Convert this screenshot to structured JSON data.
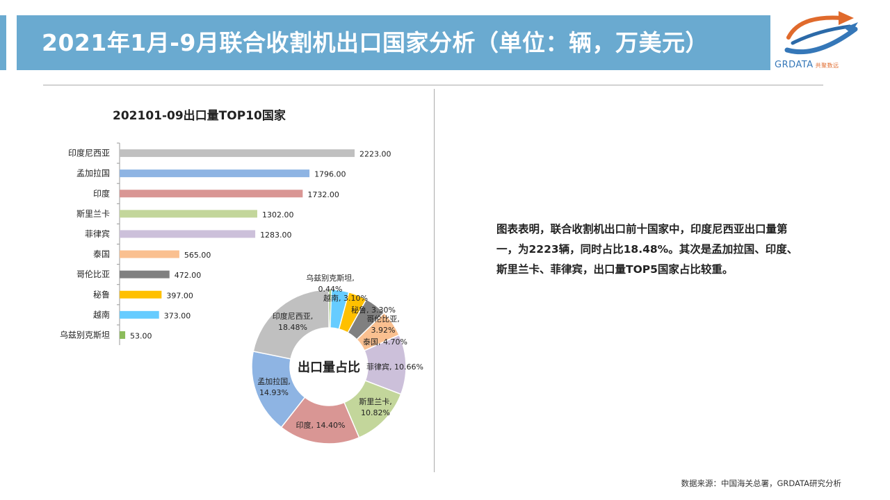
{
  "header": {
    "title": "2021年1月-9月联合收割机出口国家分析（单位：辆，万美元）",
    "logo_text": "GRDATA",
    "logo_cn": "共聚数远"
  },
  "colors": {
    "header_bg": "#6aaad0"
  },
  "chart_data": [
    {
      "type": "bar",
      "orientation": "horizontal",
      "title": "202101-09出口量TOP10国家",
      "categories": [
        "印度尼西亚",
        "孟加拉国",
        "印度",
        "斯里兰卡",
        "菲律宾",
        "泰国",
        "哥伦比亚",
        "秘鲁",
        "越南",
        "乌兹别克斯坦"
      ],
      "values": [
        2223,
        1796,
        1732,
        1302,
        1283,
        565,
        472,
        397,
        373,
        53
      ],
      "value_labels": [
        "2223.00",
        "1796.00",
        "1732.00",
        "1302.00",
        "1283.00",
        "565.00",
        "472.00",
        "397.00",
        "373.00",
        "53.00"
      ],
      "colors": [
        "#c0c0c0",
        "#8eb4e3",
        "#d99694",
        "#c3d69b",
        "#ccc0da",
        "#fac090",
        "#808080",
        "#ffc000",
        "#66ccff",
        "#8cbc5b"
      ],
      "xlim": [
        0,
        2500
      ]
    },
    {
      "type": "pie",
      "donut": true,
      "center_label": "出口量占比",
      "slices": [
        {
          "label": "乌兹别克斯坦",
          "value": 0.44,
          "text": "0.44%",
          "color": "#8cbc5b"
        },
        {
          "label": "越南",
          "value": 3.1,
          "text": "3.10%",
          "color": "#66ccff"
        },
        {
          "label": "秘鲁",
          "value": 3.3,
          "text": "3.30%",
          "color": "#ffc000"
        },
        {
          "label": "哥伦比亚",
          "value": 3.92,
          "text": "3.92%",
          "color": "#808080"
        },
        {
          "label": "泰国",
          "value": 4.7,
          "text": "4.70%",
          "color": "#fac090"
        },
        {
          "label": "菲律宾",
          "value": 10.66,
          "text": "10.66%",
          "color": "#ccc0da"
        },
        {
          "label": "斯里兰卡",
          "value": 10.82,
          "text": "10.82%",
          "color": "#c3d69b"
        },
        {
          "label": "印度",
          "value": 14.4,
          "text": "14.40%",
          "color": "#d99694"
        },
        {
          "label": "孟加拉国",
          "value": 14.93,
          "text": "14.93%",
          "color": "#8eb4e3"
        },
        {
          "label": "印度尼西亚",
          "value": 18.48,
          "text": "18.48%",
          "color": "#c0c0c0"
        }
      ]
    }
  ],
  "insight": "图表表明，联合收割机出口前十国家中，印度尼西亚出口量第一，为2223辆，同时占比18.48%。其次是孟加拉国、印度、斯里兰卡、菲律宾，出口量TOP5国家占比较重。",
  "source": "数据来源：中国海关总署，GRDATA研究分析"
}
